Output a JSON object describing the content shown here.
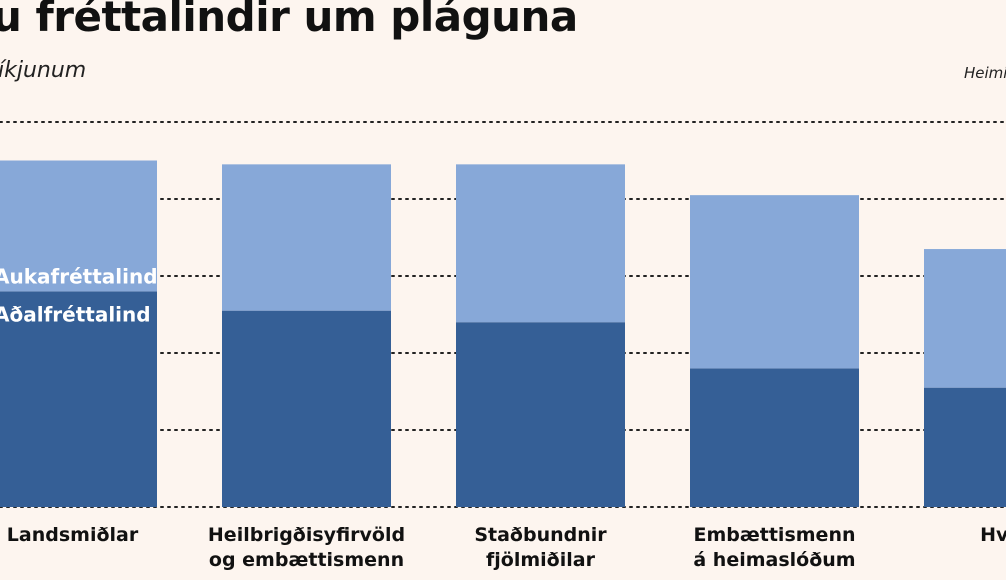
{
  "title": "u fréttalindir um pláguna",
  "subtitle": "íkjunum",
  "source": "Heimil",
  "colors": {
    "primary": "#355f96",
    "secondary": "#87a8d8",
    "grid": "#222222",
    "background": "#fdf5ef"
  },
  "chart_data": {
    "type": "bar",
    "stacked": true,
    "categories": [
      [
        "Landsmiðlar"
      ],
      [
        "Heilbrigðisyfirvöld",
        "og embættismenn"
      ],
      [
        "Staðbundnir",
        "fjölmiðilar"
      ],
      [
        "Embættismenn",
        "á heimaslóðum"
      ],
      [
        "Hvíta"
      ]
    ],
    "series": [
      {
        "name": "Aðalfréttalind",
        "color": "#355f96",
        "values": [
          56,
          51,
          48,
          36,
          31
        ]
      },
      {
        "name": "Aukafréttalind",
        "color": "#87a8d8",
        "values": [
          34,
          38,
          41,
          45,
          36
        ]
      }
    ],
    "ylim": [
      0,
      100
    ],
    "grid": true,
    "grid_style": "dotted"
  }
}
